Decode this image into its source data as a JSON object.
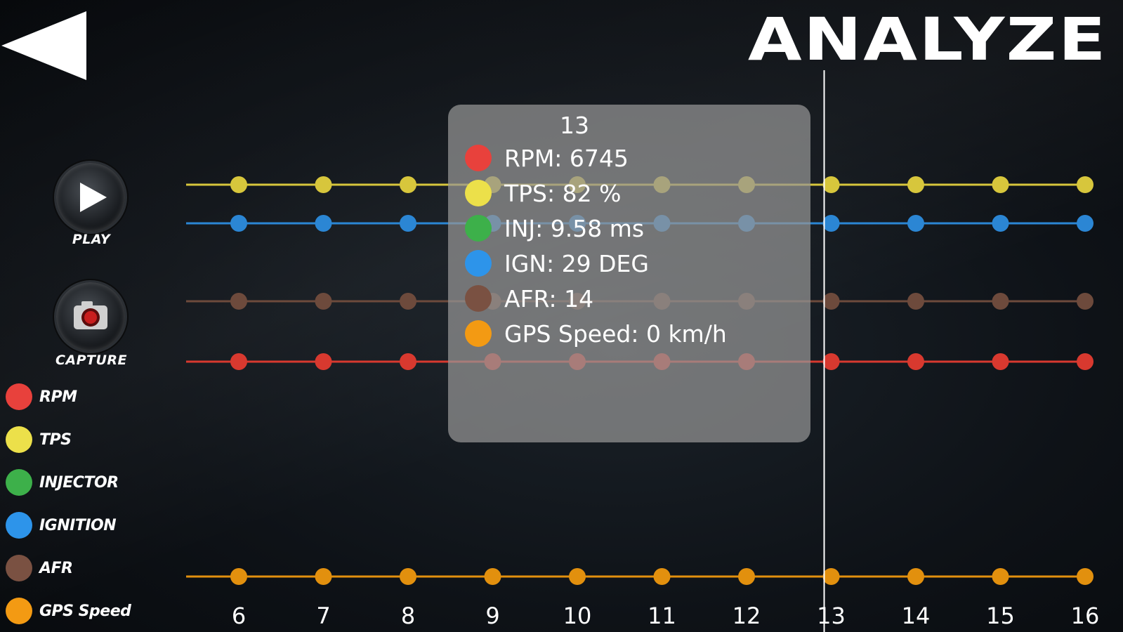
{
  "header": {
    "title": "ANALYZE",
    "back_icon": "back-arrow-icon"
  },
  "controls": {
    "play": {
      "label": "PLAY",
      "icon": "play-icon"
    },
    "capture": {
      "label": "CAPTURE",
      "icon": "camera-icon"
    }
  },
  "legend": [
    {
      "label": "RPM",
      "color": "#e8413c"
    },
    {
      "label": "TPS",
      "color": "#ece04a"
    },
    {
      "label": "INJECTOR",
      "color": "#3db04a"
    },
    {
      "label": "IGNITION",
      "color": "#2d94ea"
    },
    {
      "label": "AFR",
      "color": "#7a5142"
    },
    {
      "label": "GPS Speed",
      "color": "#f39a13"
    }
  ],
  "tooltip": {
    "header": "13",
    "rows": [
      {
        "text": "RPM: 6745",
        "color": "#e8413c"
      },
      {
        "text": "TPS: 82 %",
        "color": "#ece04a"
      },
      {
        "text": "INJ: 9.58 ms",
        "color": "#3db04a"
      },
      {
        "text": "IGN: 29 DEG",
        "color": "#2d94ea"
      },
      {
        "text": "AFR: 14",
        "color": "#7a5142"
      },
      {
        "text": "GPS Speed: 0 km/h",
        "color": "#f39a13"
      }
    ]
  },
  "chart_data": {
    "type": "line",
    "x": [
      6,
      7,
      8,
      9,
      10,
      11,
      12,
      13,
      14,
      15,
      16
    ],
    "cursor_x": 13,
    "series": [
      {
        "name": "TPS",
        "color": "#d7c63c",
        "values": [
          82,
          82,
          82,
          82,
          82,
          82,
          82,
          82,
          82,
          82,
          82
        ]
      },
      {
        "name": "IGNITION",
        "color": "#2b86d4",
        "values": [
          29,
          29,
          29,
          29,
          29,
          29,
          29,
          29,
          29,
          29,
          29
        ]
      },
      {
        "name": "AFR",
        "color": "#6d4a3c",
        "values": [
          14,
          14,
          14,
          14,
          14,
          14,
          14,
          14,
          14,
          14,
          14
        ]
      },
      {
        "name": "RPM",
        "color": "#d8392f",
        "values": [
          6745,
          6745,
          6745,
          6745,
          6745,
          6745,
          6745,
          6745,
          6745,
          6745,
          6745
        ]
      },
      {
        "name": "GPS Speed",
        "color": "#e2900e",
        "values": [
          0,
          0,
          0,
          0,
          0,
          0,
          0,
          0,
          0,
          0,
          0
        ]
      }
    ]
  }
}
